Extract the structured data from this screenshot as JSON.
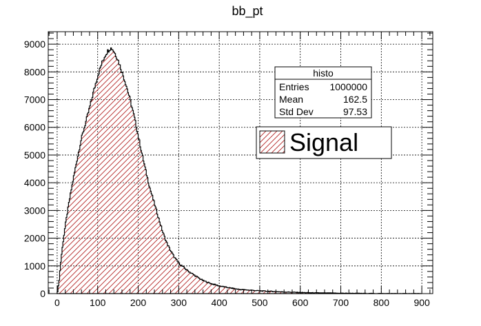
{
  "chart_data": {
    "type": "histogram",
    "title": "bb_pt",
    "xlabel": "",
    "ylabel": "",
    "xlim": [
      -22,
      927
    ],
    "ylim": [
      0,
      9450
    ],
    "x_ticks": [
      0,
      100,
      200,
      300,
      400,
      500,
      600,
      700,
      800,
      900
    ],
    "y_ticks": [
      0,
      1000,
      2000,
      3000,
      4000,
      5000,
      6000,
      7000,
      8000,
      9000
    ],
    "grid": true,
    "bin_width": 2,
    "fill_style": "hatched",
    "line_color": "#000000",
    "hatch_color": "#b22222",
    "curve_points": [
      [
        0,
        0
      ],
      [
        2,
        150
      ],
      [
        5,
        500
      ],
      [
        10,
        1300
      ],
      [
        15,
        1900
      ],
      [
        20,
        2450
      ],
      [
        25,
        2900
      ],
      [
        30,
        3350
      ],
      [
        40,
        4150
      ],
      [
        50,
        4900
      ],
      [
        60,
        5600
      ],
      [
        70,
        6150
      ],
      [
        80,
        6700
      ],
      [
        90,
        7300
      ],
      [
        100,
        7850
      ],
      [
        110,
        8300
      ],
      [
        120,
        8650
      ],
      [
        130,
        8850
      ],
      [
        135,
        8850
      ],
      [
        140,
        8750
      ],
      [
        150,
        8450
      ],
      [
        160,
        8000
      ],
      [
        170,
        7550
      ],
      [
        180,
        7000
      ],
      [
        190,
        6400
      ],
      [
        200,
        5700
      ],
      [
        210,
        5000
      ],
      [
        220,
        4350
      ],
      [
        230,
        3750
      ],
      [
        240,
        3250
      ],
      [
        250,
        2750
      ],
      [
        260,
        2250
      ],
      [
        270,
        1850
      ],
      [
        280,
        1550
      ],
      [
        290,
        1300
      ],
      [
        300,
        1100
      ],
      [
        320,
        850
      ],
      [
        340,
        650
      ],
      [
        360,
        470
      ],
      [
        380,
        360
      ],
      [
        400,
        280
      ],
      [
        420,
        220
      ],
      [
        450,
        150
      ],
      [
        500,
        100
      ],
      [
        550,
        65
      ],
      [
        600,
        40
      ],
      [
        650,
        25
      ],
      [
        700,
        15
      ],
      [
        750,
        8
      ],
      [
        800,
        4
      ],
      [
        850,
        2
      ],
      [
        900,
        0
      ]
    ],
    "stats_box": {
      "name": "histo",
      "rows": [
        {
          "label": "Entries",
          "value": "1000000"
        },
        {
          "label": "Mean",
          "value": "162.5"
        },
        {
          "label": "Std Dev",
          "value": "97.53"
        }
      ]
    },
    "legend": {
      "entries": [
        {
          "label": "Signal"
        }
      ]
    }
  }
}
